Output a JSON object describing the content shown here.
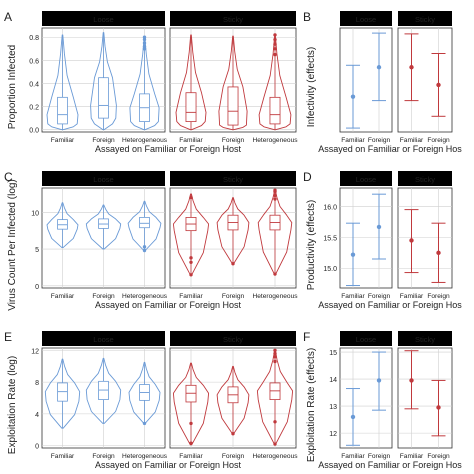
{
  "figure": {
    "xlabel": "Assayed on Familiar or Foreign Host",
    "xlabel_cut": "Assayed on Familiar or Foreign Hos",
    "strips": [
      "Loose",
      "Sticky"
    ]
  },
  "colors": {
    "loose": "#6a9ad6",
    "sticky": "#c0393d",
    "strip_bg": "#000000",
    "strip_text": "#ffffff",
    "grid": "#cfcfcf"
  },
  "chart_data": [
    {
      "panel": "A",
      "type": "violin",
      "ylabel": "Proportion Infected",
      "ylim": [
        -0.02,
        0.88
      ],
      "yticks": [
        "0.0",
        "0.2",
        "0.4",
        "0.6",
        "0.8"
      ],
      "ytick_values": [
        0,
        0.2,
        0.4,
        0.6,
        0.8
      ],
      "categories": [
        "Familiar",
        "Foreign",
        "Heterogeneous"
      ],
      "facets": [
        {
          "name": "Loose",
          "groups": [
            {
              "min": 0,
              "q1": 0.05,
              "median": 0.13,
              "q3": 0.28,
              "max": 0.82,
              "spread": 0.9
            },
            {
              "min": 0,
              "q1": 0.1,
              "median": 0.21,
              "q3": 0.45,
              "max": 0.84,
              "spread": 0.75
            },
            {
              "min": 0,
              "q1": 0.07,
              "median": 0.19,
              "q3": 0.31,
              "max": 0.8,
              "spread": 0.85,
              "outliers": [
                0.7,
                0.72,
                0.75,
                0.78,
                0.8
              ]
            }
          ]
        },
        {
          "name": "Sticky",
          "groups": [
            {
              "min": 0,
              "q1": 0.07,
              "median": 0.15,
              "q3": 0.32,
              "max": 0.82,
              "spread": 0.85
            },
            {
              "min": 0,
              "q1": 0.04,
              "median": 0.16,
              "q3": 0.37,
              "max": 0.81,
              "spread": 0.8
            },
            {
              "min": 0,
              "q1": 0.05,
              "median": 0.13,
              "q3": 0.28,
              "max": 0.82,
              "spread": 0.9,
              "outliers": [
                0.65,
                0.7,
                0.74,
                0.78,
                0.82
              ]
            }
          ]
        }
      ]
    },
    {
      "panel": "B",
      "type": "errorbar",
      "ylabel": "Infectivity (effects)",
      "ylim": [
        -2.9,
        -0.25
      ],
      "yticks": [],
      "ytick_values": [],
      "categories": [
        "Familiar",
        "Foreign"
      ],
      "facets": [
        {
          "name": "Loose",
          "groups": [
            {
              "y": -2.0,
              "lo": -2.8,
              "hi": -1.2
            },
            {
              "y": -1.25,
              "lo": -2.1,
              "hi": -0.38
            }
          ]
        },
        {
          "name": "Sticky",
          "groups": [
            {
              "y": -1.25,
              "lo": -2.1,
              "hi": -0.4
            },
            {
              "y": -1.7,
              "lo": -2.5,
              "hi": -0.9
            }
          ]
        }
      ]
    },
    {
      "panel": "C",
      "type": "violin",
      "ylabel": "Virus Count Per Infected (log)",
      "ylim": [
        -0.3,
        13.3
      ],
      "yticks": [
        "0",
        "5",
        "10"
      ],
      "ytick_values": [
        0,
        5,
        10
      ],
      "categories": [
        "Familiar",
        "Foreign",
        "Heterogeneous"
      ],
      "facets": [
        {
          "name": "Loose",
          "groups": [
            {
              "min": 5.2,
              "q1": 7.7,
              "median": 8.3,
              "q3": 9.0,
              "max": 11.3,
              "spread": 0.9
            },
            {
              "min": 5.0,
              "q1": 7.8,
              "median": 8.4,
              "q3": 9.1,
              "max": 11.0,
              "spread": 1.0
            },
            {
              "min": 4.8,
              "q1": 7.9,
              "median": 8.5,
              "q3": 9.3,
              "max": 11.5,
              "spread": 0.95,
              "outliers": [
                4.8,
                5.3
              ]
            }
          ]
        },
        {
          "name": "Sticky",
          "groups": [
            {
              "min": 1.5,
              "q1": 7.5,
              "median": 8.4,
              "q3": 9.3,
              "max": 12.5,
              "spread": 1.0,
              "outliers": [
                1.5,
                3.2,
                3.8,
                12.0
              ]
            },
            {
              "min": 3.0,
              "q1": 7.6,
              "median": 8.6,
              "q3": 9.6,
              "max": 12.0,
              "spread": 0.9,
              "outliers": [
                3.0
              ]
            },
            {
              "min": 1.6,
              "q1": 7.6,
              "median": 8.6,
              "q3": 9.6,
              "max": 13.0,
              "spread": 0.95,
              "outliers": [
                1.6,
                11.8,
                12.3,
                12.8,
                13.0
              ]
            }
          ]
        }
      ]
    },
    {
      "panel": "D",
      "type": "errorbar",
      "ylabel": "Productivity (effects)",
      "ylim": [
        14.68,
        16.3
      ],
      "yticks": [
        "15.0",
        "15.5",
        "16.0"
      ],
      "ytick_values": [
        15.0,
        15.5,
        16.0
      ],
      "categories": [
        "Familiar",
        "Foreign"
      ],
      "facets": [
        {
          "name": "Loose",
          "groups": [
            {
              "y": 15.22,
              "lo": 14.72,
              "hi": 15.73
            },
            {
              "y": 15.67,
              "lo": 15.15,
              "hi": 16.2
            }
          ]
        },
        {
          "name": "Sticky",
          "groups": [
            {
              "y": 15.45,
              "lo": 14.93,
              "hi": 15.95
            },
            {
              "y": 15.25,
              "lo": 14.77,
              "hi": 15.73
            }
          ]
        }
      ]
    },
    {
      "panel": "E",
      "type": "violin",
      "ylabel": "Exploitation Rate (log)",
      "ylim": [
        -0.3,
        12.3
      ],
      "yticks": [
        "0",
        "4",
        "8",
        "12"
      ],
      "ytick_values": [
        0,
        4,
        8,
        12
      ],
      "categories": [
        "Familiar",
        "Foreign",
        "Heterogeneous"
      ],
      "facets": [
        {
          "name": "Loose",
          "groups": [
            {
              "min": 2.2,
              "q1": 5.6,
              "median": 6.8,
              "q3": 7.9,
              "max": 10.9,
              "spread": 1.0
            },
            {
              "min": 2.8,
              "q1": 5.8,
              "median": 7.0,
              "q3": 8.1,
              "max": 11.0,
              "spread": 1.0
            },
            {
              "min": 2.8,
              "q1": 5.7,
              "median": 6.7,
              "q3": 7.7,
              "max": 10.5,
              "spread": 0.9,
              "outliers": [
                2.8
              ]
            }
          ]
        },
        {
          "name": "Sticky",
          "groups": [
            {
              "min": 0.1,
              "q1": 5.5,
              "median": 6.6,
              "q3": 7.6,
              "max": 10.4,
              "spread": 1.0,
              "outliers": [
                0.3,
                2.8
              ]
            },
            {
              "min": 1.5,
              "q1": 5.4,
              "median": 6.4,
              "q3": 7.4,
              "max": 10.0,
              "spread": 0.9,
              "outliers": [
                1.5
              ]
            },
            {
              "min": 0.2,
              "q1": 5.8,
              "median": 6.9,
              "q3": 7.9,
              "max": 12.0,
              "spread": 1.0,
              "outliers": [
                0.2,
                3.0,
                10.6,
                11.2,
                11.6,
                12.0
              ]
            }
          ]
        }
      ]
    },
    {
      "panel": "F",
      "type": "errorbar",
      "ylabel": "Exploitation Rate (effects)",
      "ylim": [
        11.45,
        15.15
      ],
      "yticks": [
        "12",
        "13",
        "14",
        "15"
      ],
      "ytick_values": [
        12,
        13,
        14,
        15
      ],
      "categories": [
        "Familiar",
        "Foreign"
      ],
      "facets": [
        {
          "name": "Loose",
          "groups": [
            {
              "y": 12.6,
              "lo": 11.55,
              "hi": 13.65
            },
            {
              "y": 13.95,
              "lo": 12.85,
              "hi": 15.0
            }
          ]
        },
        {
          "name": "Sticky",
          "groups": [
            {
              "y": 13.95,
              "lo": 12.9,
              "hi": 15.05
            },
            {
              "y": 12.95,
              "lo": 11.9,
              "hi": 13.95
            }
          ]
        }
      ]
    }
  ]
}
